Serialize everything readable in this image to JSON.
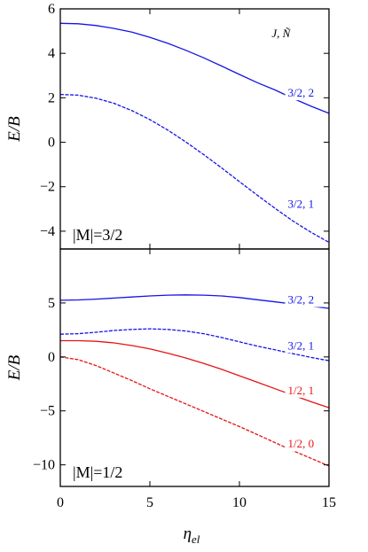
{
  "colors": {
    "blue": "#1414e6",
    "red": "#e61414",
    "axis": "#000000"
  },
  "xlabel": "η",
  "xlabel_sub": "el",
  "ylabel": "E/B",
  "x_ticks": [
    "0",
    "5",
    "10",
    "15"
  ],
  "chart_data": [
    {
      "type": "line",
      "panel": "top",
      "xlim": [
        0,
        15
      ],
      "ylim": [
        -4.8,
        6
      ],
      "yticks": [
        -4,
        -2,
        0,
        2,
        4,
        6
      ],
      "ytick_labels": [
        "−4",
        "−2",
        "0",
        "2",
        "4",
        "6"
      ],
      "panel_label": "|M|=3/2",
      "legend_header": "J, Ñ",
      "series": [
        {
          "name": "3/2, 2",
          "label_at": [
            12.7,
            2.05
          ],
          "color": "blue",
          "dashed": false,
          "x": [
            0,
            1,
            2,
            3,
            4,
            5,
            6,
            7,
            8,
            9,
            10,
            11,
            12,
            13,
            14,
            15
          ],
          "y": [
            5.35,
            5.33,
            5.25,
            5.12,
            4.95,
            4.72,
            4.45,
            4.14,
            3.8,
            3.43,
            3.05,
            2.68,
            2.35,
            1.97,
            1.62,
            1.3
          ]
        },
        {
          "name": "3/2, 1",
          "label_at": [
            12.7,
            -2.95
          ],
          "color": "blue",
          "dashed": true,
          "x": [
            0,
            1,
            2,
            3,
            4,
            5,
            6,
            7,
            8,
            9,
            10,
            11,
            12,
            13,
            14,
            15
          ],
          "y": [
            2.15,
            2.12,
            1.98,
            1.75,
            1.42,
            1.02,
            0.55,
            0.02,
            -0.55,
            -1.15,
            -1.77,
            -2.38,
            -2.98,
            -3.55,
            -4.05,
            -4.5
          ]
        }
      ]
    },
    {
      "type": "line",
      "panel": "bottom",
      "xlim": [
        0,
        15
      ],
      "ylim": [
        -12,
        10
      ],
      "yticks": [
        -10,
        -5,
        0,
        5
      ],
      "ytick_labels": [
        "−10",
        "−5",
        "0",
        "5"
      ],
      "panel_label": "|M|=1/2",
      "series": [
        {
          "name": "3/2, 2",
          "label_at": [
            12.7,
            4.95
          ],
          "color": "blue",
          "dashed": false,
          "x": [
            0,
            1,
            2,
            3,
            4,
            5,
            6,
            7,
            8,
            9,
            10,
            11,
            12,
            13,
            14,
            15
          ],
          "y": [
            5.25,
            5.28,
            5.35,
            5.45,
            5.55,
            5.65,
            5.72,
            5.75,
            5.72,
            5.65,
            5.5,
            5.3,
            5.1,
            4.9,
            4.7,
            4.5
          ]
        },
        {
          "name": "3/2, 1",
          "label_at": [
            12.7,
            0.7
          ],
          "color": "blue",
          "dashed": true,
          "x": [
            0,
            1,
            2,
            3,
            4,
            5,
            6,
            7,
            8,
            9,
            10,
            11,
            12,
            13,
            14,
            15
          ],
          "y": [
            2.1,
            2.15,
            2.28,
            2.45,
            2.55,
            2.6,
            2.55,
            2.4,
            2.15,
            1.8,
            1.4,
            1.0,
            0.65,
            0.3,
            -0.05,
            -0.35
          ]
        },
        {
          "name": "1/2, 1",
          "label_at": [
            12.7,
            -3.45
          ],
          "color": "red",
          "dashed": false,
          "x": [
            0,
            1,
            2,
            3,
            4,
            5,
            6,
            7,
            8,
            9,
            10,
            11,
            12,
            13,
            14,
            15
          ],
          "y": [
            1.5,
            1.5,
            1.45,
            1.3,
            1.05,
            0.75,
            0.35,
            -0.1,
            -0.6,
            -1.15,
            -1.75,
            -2.35,
            -2.95,
            -3.55,
            -4.15,
            -4.7
          ]
        },
        {
          "name": "1/2, 0",
          "label_at": [
            12.7,
            -8.4
          ],
          "color": "red",
          "dashed": true,
          "x": [
            0,
            1,
            2,
            3,
            4,
            5,
            6,
            7,
            8,
            9,
            10,
            11,
            12,
            13,
            14,
            15
          ],
          "y": [
            0.0,
            -0.25,
            -0.8,
            -1.5,
            -2.2,
            -2.95,
            -3.65,
            -4.35,
            -5.05,
            -5.75,
            -6.45,
            -7.2,
            -7.95,
            -8.7,
            -9.4,
            -10.1
          ]
        }
      ]
    }
  ]
}
